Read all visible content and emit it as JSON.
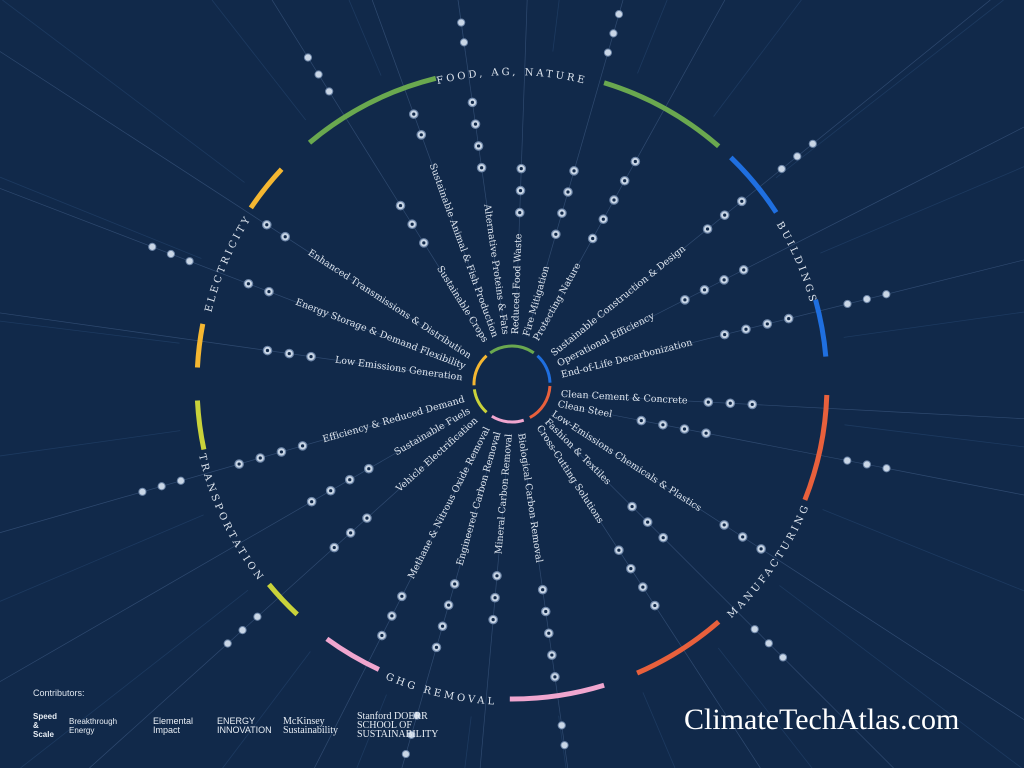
{
  "colors": {
    "background": "#11294a",
    "ray": "#2f4a70",
    "text": "#dfe6ef"
  },
  "sectors": [
    {
      "name": "FOOD, AG, NATURE",
      "color": "#6aa84f"
    },
    {
      "name": "BUILDINGS",
      "color": "#1f6fe0"
    },
    {
      "name": "MANUFACTURING",
      "color": "#e8603c"
    },
    {
      "name": "GHG REMOVAL",
      "color": "#f0a6cf"
    },
    {
      "name": "TRANSPORTATION",
      "color": "#c9d23a"
    },
    {
      "name": "ELECTRICITY",
      "color": "#f5b731"
    }
  ],
  "subsectors": [
    {
      "label": "Sustainable Crops",
      "sector": 0
    },
    {
      "label": "Sustainable Animal & Fish Production",
      "sector": 0
    },
    {
      "label": "Alternative Proteins & Fats",
      "sector": 0
    },
    {
      "label": "Reduced Food Waste",
      "sector": 0
    },
    {
      "label": "Fire Mitigation",
      "sector": 0
    },
    {
      "label": "Protecting Nature",
      "sector": 0
    },
    {
      "label": "Sustainable Construction & Design",
      "sector": 1
    },
    {
      "label": "Operational Efficiency",
      "sector": 1
    },
    {
      "label": "End-of-Life Decarbonization",
      "sector": 1
    },
    {
      "label": "Clean Cement & Concrete",
      "sector": 2
    },
    {
      "label": "Clean Steel",
      "sector": 2
    },
    {
      "label": "Low-Emissions Chemicals & Plastics",
      "sector": 2
    },
    {
      "label": "Fashion & Textiles",
      "sector": 2
    },
    {
      "label": "Cross-Cutting Solutions",
      "sector": 2
    },
    {
      "label": "Biological Carbon Removal",
      "sector": 3
    },
    {
      "label": "Mineral Carbon Removal",
      "sector": 3
    },
    {
      "label": "Engineered Carbon Removal",
      "sector": 3
    },
    {
      "label": "Methane & Nitrous Oxide Removal",
      "sector": 3
    },
    {
      "label": "Vehicle Electrification",
      "sector": 4
    },
    {
      "label": "Sustainable Fuels",
      "sector": 4
    },
    {
      "label": "Efficiency & Reduced Demand",
      "sector": 4
    },
    {
      "label": "Low Emissions Generation",
      "sector": 5
    },
    {
      "label": "Energy Storage & Demand Flexibility",
      "sector": 5
    },
    {
      "label": "Enhanced Transmissions & Distribution",
      "sector": 5
    }
  ],
  "footer": {
    "contributors_label": "Contributors:",
    "logos": [
      "Speed & Scale",
      "Breakthrough Energy",
      "Elemental Impact",
      "ENERGY INNOVATION",
      "McKinsey Sustainability",
      "Stanford DOERR SCHOOL OF SUSTAINABILITY"
    ],
    "site": "ClimateTechAtlas.com"
  }
}
